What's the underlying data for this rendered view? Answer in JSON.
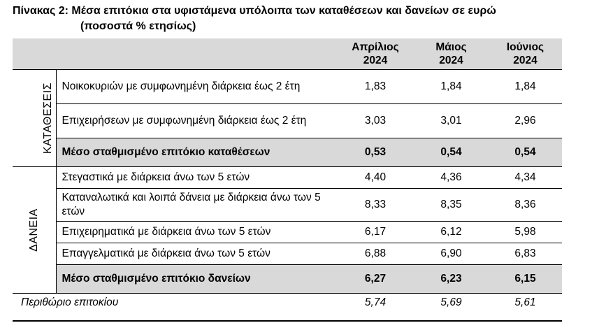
{
  "title": {
    "line1": "Πίνακας 2: Μέσα επιτόκια στα υφιστάμενα υπόλοιπα των καταθέσεων και δανείων σε ευρώ",
    "line2": "(ποσοστά % ετησίως)"
  },
  "columns": [
    {
      "month": "Απρίλιος",
      "year": "2024"
    },
    {
      "month": "Μάιος",
      "year": "2024"
    },
    {
      "month": "Ιούνιος",
      "year": "2024"
    }
  ],
  "deposits": {
    "group_label": "ΚΑΤΑΘΕΣΕΙΣ",
    "rows": [
      {
        "label": "Νοικοκυριών με συμφωνημένη διάρκεια έως 2 έτη",
        "values": [
          "1,83",
          "1,84",
          "1,84"
        ]
      },
      {
        "label": "Επιχειρήσεων με συμφωνημένη διάρκεια έως 2 έτη",
        "values": [
          "3,03",
          "3,01",
          "2,96"
        ]
      }
    ],
    "summary": {
      "label": "Μέσο σταθμισμένο επιτόκιο καταθέσεων",
      "values": [
        "0,53",
        "0,54",
        "0,54"
      ]
    }
  },
  "loans": {
    "group_label": "ΔΑΝΕΙΑ",
    "rows": [
      {
        "label": "Στεγαστικά με διάρκεια άνω των 5 ετών",
        "values": [
          "4,40",
          "4,36",
          "4,34"
        ]
      },
      {
        "label": "Καταναλωτικά και λοιπά δάνεια με διάρκεια άνω των 5 ετών",
        "values": [
          "8,33",
          "8,35",
          "8,36"
        ]
      },
      {
        "label": "Επιχειρηματικά με διάρκεια άνω των 5 ετών",
        "values": [
          "6,17",
          "6,12",
          "5,98"
        ]
      },
      {
        "label": "Επαγγελματικά με διάρκεια άνω των 5 ετών",
        "values": [
          "6,88",
          "6,90",
          "6,83"
        ]
      }
    ],
    "summary": {
      "label": "Μέσο σταθμισμένο επιτόκιο δανείων",
      "values": [
        "6,27",
        "6,23",
        "6,15"
      ]
    }
  },
  "margin": {
    "label": "Περιθώριο επιτοκίου",
    "values": [
      "5,74",
      "5,69",
      "5,61"
    ]
  }
}
